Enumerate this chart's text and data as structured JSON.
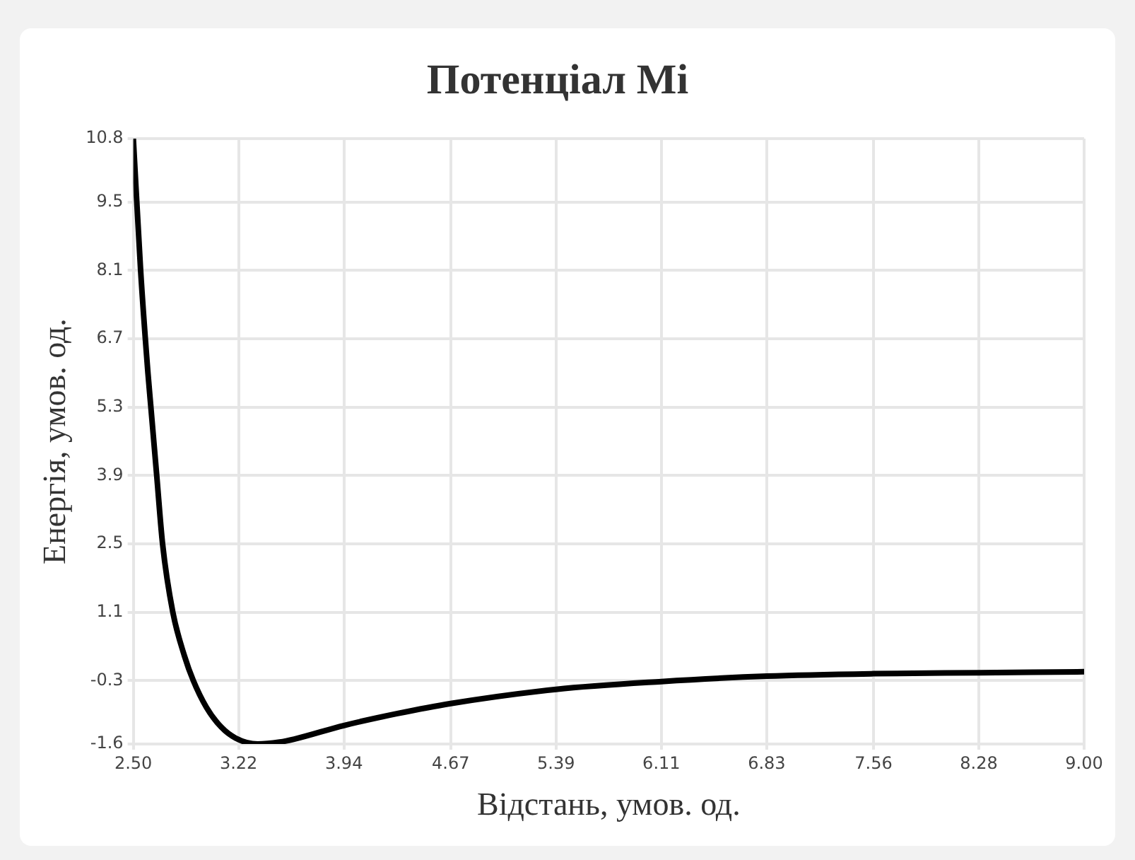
{
  "chart_data": {
    "type": "line",
    "title": "Потенціал Мі",
    "xlabel": "Відстань, умов. од.",
    "ylabel": "Енергія, умов. од.",
    "x": [
      2.5,
      2.55,
      2.6,
      2.62,
      2.66,
      2.7,
      2.77,
      2.85,
      2.91,
      3.0,
      3.1,
      3.2,
      3.35,
      3.5,
      3.6,
      3.94,
      4.3,
      4.67,
      5.39,
      6.11,
      6.83,
      7.56,
      8.28,
      9.0
    ],
    "series": [
      {
        "color": "#000000",
        "values": [
          10.8,
          8.1,
          6.0,
          5.3,
          3.9,
          2.5,
          1.1,
          0.2,
          -0.3,
          -0.85,
          -1.25,
          -1.48,
          -1.6,
          -1.56,
          -1.5,
          -1.22,
          -0.98,
          -0.77,
          -0.48,
          -0.32,
          -0.21,
          -0.16,
          -0.14,
          -0.12
        ]
      }
    ],
    "xlim": [
      2.5,
      9.0
    ],
    "xticks": [
      {
        "value": 2.5,
        "label": "2.50"
      },
      {
        "value": 3.22,
        "label": "3.22"
      },
      {
        "value": 3.94,
        "label": "3.94"
      },
      {
        "value": 4.67,
        "label": "4.67"
      },
      {
        "value": 5.39,
        "label": "5.39"
      },
      {
        "value": 6.11,
        "label": "6.11"
      },
      {
        "value": 6.83,
        "label": "6.83"
      },
      {
        "value": 7.56,
        "label": "7.56"
      },
      {
        "value": 8.28,
        "label": "8.28"
      },
      {
        "value": 9.0,
        "label": "9.00"
      }
    ],
    "ylim": [
      -1.6,
      10.8
    ],
    "yticks": [
      -1.6,
      -0.3,
      1.1,
      2.5,
      3.9,
      5.3,
      6.7,
      8.1,
      9.5,
      10.8
    ],
    "grid": true,
    "legend": false,
    "marker": "none",
    "line_style": "solid"
  }
}
